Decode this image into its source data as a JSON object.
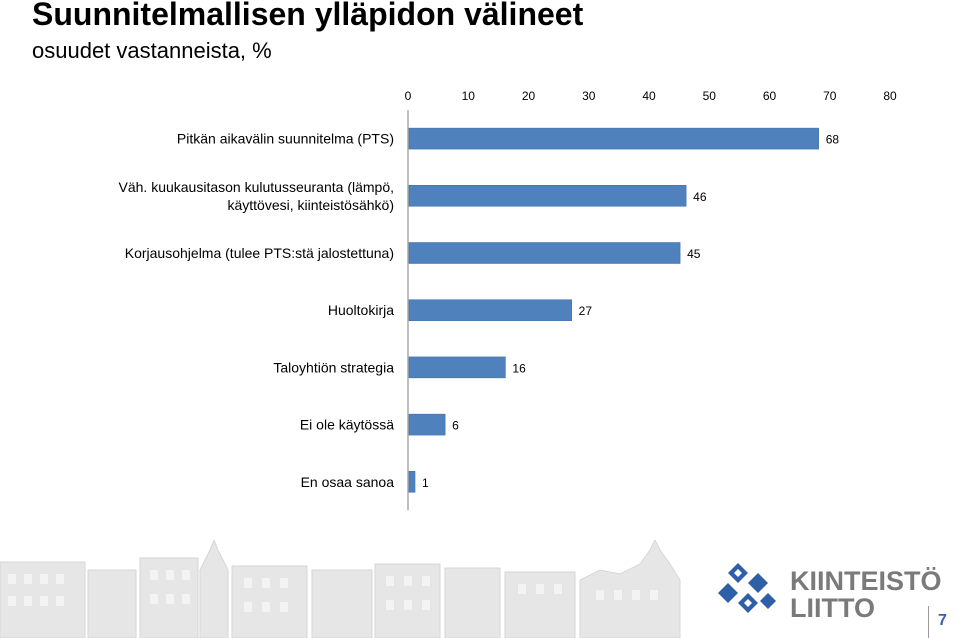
{
  "title": "Suunnitelmallisen ylläpidon välineet",
  "subtitle": "osuudet vastanneista, %",
  "brand": {
    "line1": "KIINTEISTÖ",
    "line2": "LIITTO"
  },
  "page_number": "7",
  "colors": {
    "bar": "#4f81bd",
    "bar_stroke": "#3a6aa5",
    "logo_blue": "#2f5fa6",
    "brand_grey": "#7a7a7a"
  },
  "chart_data": {
    "type": "bar",
    "orientation": "horizontal",
    "title": "",
    "xlabel": "",
    "ylabel": "",
    "xlim": [
      0,
      80
    ],
    "ticks": [
      0,
      10,
      20,
      30,
      40,
      50,
      60,
      70,
      80
    ],
    "axis_position": "top",
    "grid": false,
    "categories": [
      [
        "Pitkän aikavälin suunnitelma (PTS)"
      ],
      [
        "Väh. kuukausitason kulutusseuranta (lämpö,",
        "käyttövesi, kiinteistösähkö)"
      ],
      [
        "Korjausohjelma (tulee PTS:stä jalostettuna)"
      ],
      [
        "Huoltokirja"
      ],
      [
        "Taloyhtiön strategia"
      ],
      [
        "Ei ole käytössä"
      ],
      [
        "En osaa sanoa"
      ]
    ],
    "values": [
      68,
      46,
      45,
      27,
      16,
      6,
      1
    ]
  }
}
